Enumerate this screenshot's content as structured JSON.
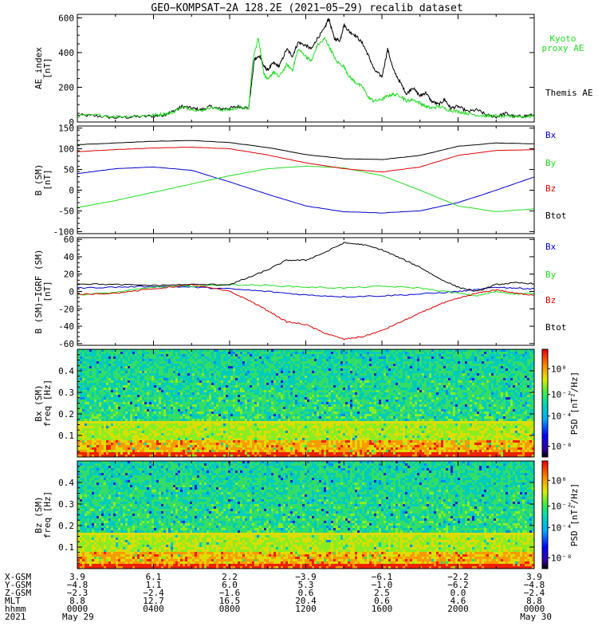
{
  "title": "GEO−KOMPSAT−2A 128.2E (2021−05−29) recalib dataset",
  "colors": {
    "black": "#000000",
    "blue": "#0000cc",
    "green": "#22dd22",
    "red": "#dd0000",
    "kyoto": "#22dd22"
  },
  "chart_data": [
    {
      "type": "line",
      "id": "ae",
      "ylabel": "AE_index\n[nT]",
      "ylim": [
        0,
        620
      ],
      "yticks": [
        0,
        200,
        400,
        600
      ],
      "x_unit": "hours since 2021-05-29 00:00",
      "xlim": [
        0,
        24
      ],
      "legend": [
        {
          "name": "Kyoto\nproxy AE",
          "color": "#22dd22"
        },
        {
          "name": "Themis AE",
          "color": "#000000"
        }
      ],
      "series": [
        {
          "name": "Themis AE",
          "color": "#000000",
          "x": [
            0,
            1,
            2,
            3,
            4,
            4.5,
            5,
            5.5,
            6,
            6.5,
            7,
            7.5,
            8,
            8.5,
            9,
            9.3,
            9.6,
            9.8,
            10,
            10.3,
            10.6,
            11,
            11.3,
            11.6,
            12,
            12.3,
            12.6,
            13,
            13.2,
            13.5,
            13.8,
            14,
            14.3,
            14.6,
            15,
            15.3,
            15.6,
            16,
            16.3,
            16.6,
            17,
            17.3,
            17.6,
            18,
            18.3,
            18.6,
            19,
            19.3,
            19.6,
            20,
            20.5,
            21,
            21.5,
            22,
            22.5,
            23,
            23.5,
            24
          ],
          "y": [
            40,
            35,
            25,
            30,
            35,
            40,
            60,
            90,
            80,
            70,
            90,
            75,
            80,
            90,
            80,
            360,
            380,
            320,
            300,
            340,
            320,
            420,
            380,
            460,
            440,
            420,
            480,
            540,
            600,
            480,
            470,
            560,
            520,
            500,
            450,
            380,
            300,
            260,
            420,
            300,
            220,
            160,
            200,
            150,
            170,
            120,
            100,
            130,
            80,
            90,
            60,
            70,
            40,
            30,
            50,
            30,
            35,
            40
          ]
        },
        {
          "name": "Kyoto proxy AE",
          "color": "#22dd22",
          "x": [
            0,
            1,
            2,
            3,
            4,
            4.5,
            5,
            5.5,
            6,
            6.5,
            7,
            7.5,
            8,
            8.5,
            9,
            9.2,
            9.5,
            9.8,
            10,
            10.3,
            10.6,
            11,
            11.3,
            11.6,
            12,
            12.3,
            12.6,
            13,
            13.3,
            13.6,
            14,
            14.3,
            14.6,
            15,
            15.3,
            15.6,
            16,
            16.3,
            16.6,
            17,
            17.3,
            17.6,
            18,
            18.3,
            18.6,
            19,
            19.5,
            20,
            20.5,
            21,
            21.5,
            22,
            22.5,
            23,
            23.5,
            24
          ],
          "y": [
            35,
            40,
            30,
            35,
            40,
            45,
            55,
            85,
            75,
            65,
            85,
            70,
            70,
            85,
            75,
            340,
            490,
            280,
            240,
            290,
            260,
            330,
            300,
            420,
            380,
            350,
            440,
            480,
            420,
            350,
            320,
            260,
            230,
            200,
            140,
            120,
            130,
            150,
            160,
            150,
            120,
            130,
            110,
            90,
            80,
            90,
            70,
            60,
            50,
            40,
            35,
            35,
            30,
            35,
            30,
            35
          ]
        }
      ]
    },
    {
      "type": "line",
      "id": "b",
      "ylabel": "B (SM)\n[nT]",
      "ylim": [
        -105,
        155
      ],
      "yticks": [
        -100,
        -50,
        0,
        50,
        100,
        150
      ],
      "xlim": [
        0,
        24
      ],
      "legend": [
        {
          "name": "Bx",
          "color": "#0000cc"
        },
        {
          "name": "By",
          "color": "#22dd22"
        },
        {
          "name": "Bz",
          "color": "#dd0000"
        },
        {
          "name": "Btot",
          "color": "#000000"
        }
      ],
      "series": [
        {
          "name": "Bx",
          "color": "#0000cc",
          "x": [
            0,
            2,
            4,
            6,
            8,
            10,
            12,
            14,
            16,
            18,
            20,
            22,
            24
          ],
          "y": [
            40,
            52,
            56,
            48,
            20,
            -10,
            -38,
            -52,
            -55,
            -50,
            -30,
            0,
            32
          ]
        },
        {
          "name": "By",
          "color": "#22dd22",
          "x": [
            0,
            2,
            4,
            6,
            8,
            10,
            12,
            14,
            16,
            18,
            20,
            22,
            24
          ],
          "y": [
            -42,
            -25,
            -5,
            15,
            35,
            52,
            58,
            54,
            35,
            0,
            -38,
            -52,
            -45
          ]
        },
        {
          "name": "Bz",
          "color": "#dd0000",
          "x": [
            0,
            2,
            4,
            6,
            8,
            10,
            12,
            14,
            16,
            18,
            20,
            22,
            24
          ],
          "y": [
            93,
            98,
            102,
            104,
            100,
            85,
            66,
            52,
            44,
            56,
            84,
            96,
            98
          ]
        },
        {
          "name": "Btot",
          "color": "#000000",
          "x": [
            0,
            2,
            4,
            6,
            8,
            10,
            12,
            14,
            16,
            18,
            20,
            22,
            24
          ],
          "y": [
            110,
            114,
            118,
            120,
            115,
            103,
            86,
            76,
            74,
            84,
            106,
            114,
            112
          ]
        }
      ]
    },
    {
      "type": "line",
      "id": "db",
      "ylabel": "B (SM)−IGRF (SM)\n[nT]",
      "ylim": [
        -62,
        62
      ],
      "yticks": [
        -60,
        -40,
        -20,
        0,
        20,
        40,
        60
      ],
      "xlim": [
        0,
        24
      ],
      "legend": [
        {
          "name": "Bx",
          "color": "#0000cc"
        },
        {
          "name": "By",
          "color": "#22dd22"
        },
        {
          "name": "Bz",
          "color": "#dd0000"
        },
        {
          "name": "Btot",
          "color": "#000000"
        }
      ],
      "series": [
        {
          "name": "Bx",
          "color": "#0000cc",
          "x": [
            0,
            2,
            4,
            6,
            8,
            10,
            12,
            14,
            16,
            18,
            20,
            21,
            22,
            23,
            24
          ],
          "y": [
            4,
            5,
            6,
            5,
            3,
            0,
            -4,
            -6,
            -5,
            -3,
            0,
            2,
            5,
            4,
            3
          ]
        },
        {
          "name": "By",
          "color": "#22dd22",
          "x": [
            0,
            2,
            4,
            6,
            8,
            10,
            12,
            14,
            16,
            18,
            20,
            21,
            22,
            23,
            24
          ],
          "y": [
            -4,
            -1,
            5,
            6,
            8,
            7,
            5,
            4,
            6,
            4,
            -2,
            -5,
            0,
            -3,
            -2
          ]
        },
        {
          "name": "Bz",
          "color": "#dd0000",
          "x": [
            0,
            2,
            4,
            6,
            8,
            9,
            10,
            11,
            12,
            13,
            14,
            15,
            16,
            17,
            18,
            19,
            20,
            21,
            22,
            23,
            24
          ],
          "y": [
            -3,
            -2,
            3,
            8,
            0,
            -10,
            -22,
            -35,
            -38,
            -48,
            -55,
            -52,
            -45,
            -35,
            -25,
            -15,
            -8,
            -2,
            2,
            -2,
            -4
          ]
        },
        {
          "name": "Btot",
          "color": "#000000",
          "x": [
            0,
            2,
            4,
            6,
            8,
            9,
            10,
            11,
            12,
            13,
            14,
            15,
            16,
            17,
            18,
            19,
            20,
            21,
            22,
            23,
            24
          ],
          "y": [
            9,
            8,
            7,
            8,
            8,
            16,
            25,
            36,
            36,
            45,
            56,
            54,
            48,
            38,
            28,
            15,
            5,
            0,
            8,
            10,
            9
          ]
        }
      ]
    },
    {
      "type": "heatmap",
      "id": "bx_psd",
      "ylabel": "Bx (SM)\nfreq [Hz]",
      "ylim": [
        0,
        0.5
      ],
      "yticks": [
        0.1,
        0.2,
        0.3,
        0.4
      ],
      "xlim": [
        0,
        24
      ],
      "colorbar_label": "PSD [nT²/Hz]",
      "colorbar_ticks": [
        "10⁰",
        "10⁻²",
        "10⁻⁴",
        "10⁻⁸"
      ],
      "line_freq_hz": 0.167
    },
    {
      "type": "heatmap",
      "id": "bz_psd",
      "ylabel": "Bz (SM)\nfreq [Hz]",
      "ylim": [
        0,
        0.5
      ],
      "yticks": [
        0.1,
        0.2,
        0.3,
        0.4
      ],
      "xlim": [
        0,
        24
      ],
      "colorbar_label": "PSD [nT²/Hz]",
      "colorbar_ticks": [
        "10⁰",
        "10⁻²",
        "10⁻⁴",
        "10⁻⁸"
      ],
      "line_freq_hz": 0.167
    }
  ],
  "ephemeris": {
    "row_labels": [
      "X-GSM",
      "Y-GSM",
      "Z-GSM",
      "MLT",
      "hhmm",
      "2021"
    ],
    "columns": [
      {
        "x": 0,
        "vals": [
          "3.9",
          "−4.8",
          "−2.3",
          "8.8",
          "0000",
          "May 29"
        ]
      },
      {
        "x": 4,
        "vals": [
          "6.1",
          "1.1",
          "−2.4",
          "12.7",
          "0400",
          ""
        ]
      },
      {
        "x": 8,
        "vals": [
          "2.2",
          "6.0",
          "−1.6",
          "16.5",
          "0800",
          ""
        ]
      },
      {
        "x": 12,
        "vals": [
          "−3.9",
          "5.3",
          "0.6",
          "20.4",
          "1200",
          ""
        ]
      },
      {
        "x": 16,
        "vals": [
          "−6.1",
          "−1.0",
          "2.5",
          "0.6",
          "1600",
          ""
        ]
      },
      {
        "x": 20,
        "vals": [
          "−2.2",
          "−6.2",
          "0.0",
          "4.6",
          "2000",
          ""
        ]
      },
      {
        "x": 24,
        "vals": [
          "3.9",
          "−4.8",
          "−2.4",
          "8.8",
          "0000",
          "May 30"
        ]
      }
    ]
  }
}
